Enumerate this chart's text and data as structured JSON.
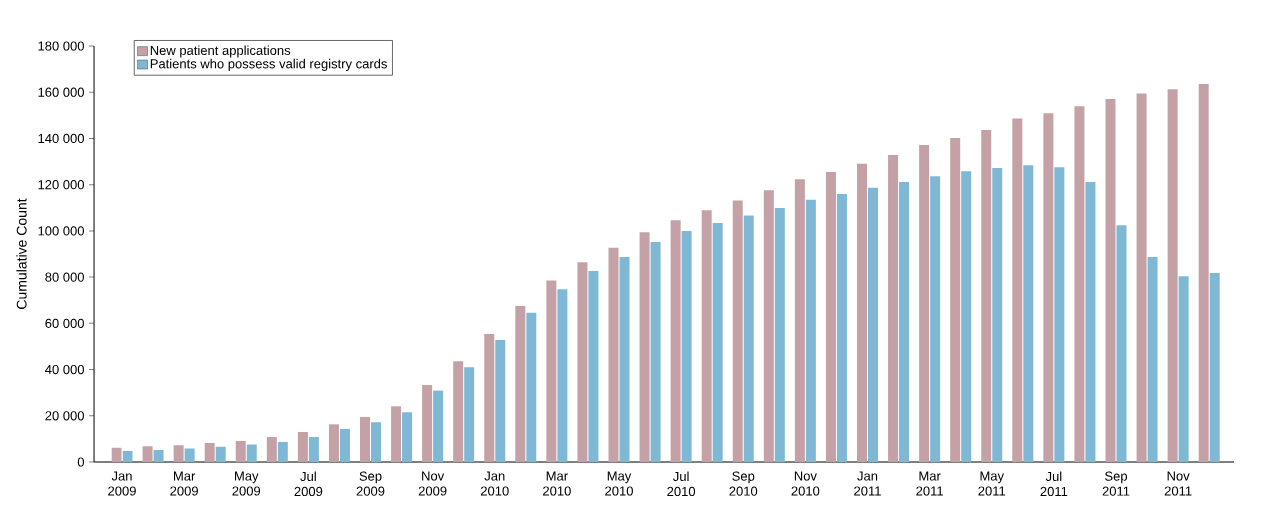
{
  "chart_data": {
    "type": "bar",
    "ylabel": "Cumulative Count",
    "categories": [
      "Jan 2009",
      null,
      "Mar 2009",
      null,
      "May 2009",
      null,
      "Jul 2009",
      null,
      "Sep 2009",
      null,
      "Nov 2009",
      null,
      "Jan 2010",
      null,
      "Mar 2010",
      null,
      "May 2010",
      null,
      "Jul 2010",
      null,
      "Sep 2010",
      null,
      "Nov 2010",
      null,
      "Jan 2011",
      null,
      "Mar 2011",
      null,
      "May 2011",
      null,
      "Jul 2011",
      null,
      "Sep 2011",
      null,
      "Nov 2011",
      null
    ],
    "series": [
      {
        "name": "New patient applications",
        "color": "#c4a1a6",
        "values": [
          6200,
          6800,
          7200,
          8200,
          9100,
          10800,
          13000,
          16300,
          19500,
          24100,
          33300,
          43600,
          55400,
          67500,
          78500,
          86400,
          92700,
          99400,
          104600,
          108900,
          113100,
          117600,
          122300,
          125500,
          129100,
          132800,
          137200,
          140200,
          143700,
          148600,
          150900,
          153900,
          157100,
          159400,
          161300,
          163600
        ]
      },
      {
        "name": "Patients who possess valid registry cards",
        "color": "#7fb8d4",
        "values": [
          4800,
          5200,
          5800,
          6600,
          7600,
          8700,
          10800,
          14300,
          17200,
          21500,
          30900,
          41000,
          52800,
          64600,
          74700,
          82600,
          88700,
          95200,
          99900,
          103400,
          106700,
          109900,
          113500,
          116000,
          118700,
          121200,
          123600,
          125800,
          127200,
          128400,
          127500,
          121200,
          102400,
          88700,
          80400,
          81800
        ]
      }
    ],
    "ylim": [
      0,
      180000
    ],
    "yticks": [
      0,
      {
        "value": 20000,
        "label": "20 000"
      },
      {
        "value": 40000,
        "label": "40 000"
      },
      {
        "value": 60000,
        "label": "60 000"
      },
      {
        "value": 80000,
        "label": "80 000"
      },
      {
        "value": 100000,
        "label": "100 000"
      },
      {
        "value": 120000,
        "label": "120 000"
      },
      {
        "value": 140000,
        "label": "140 000"
      },
      {
        "value": 160000,
        "label": "160 000"
      },
      {
        "value": 180000,
        "label": "180 000"
      }
    ],
    "grid": false,
    "legend": "top left"
  }
}
